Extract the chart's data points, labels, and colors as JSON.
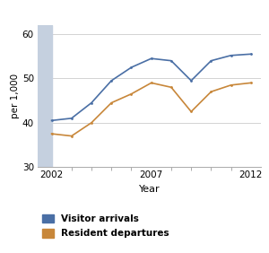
{
  "arrivals_x": [
    2002,
    2003,
    2004,
    2005,
    2006,
    2007,
    2008,
    2009,
    2010,
    2011,
    2012
  ],
  "arrivals_y": [
    40.5,
    41.0,
    44.5,
    49.5,
    52.5,
    54.5,
    54.0,
    49.5,
    54.0,
    55.2,
    55.5
  ],
  "departures_x": [
    2002,
    2003,
    2004,
    2005,
    2006,
    2007,
    2008,
    2009,
    2010,
    2011,
    2012
  ],
  "departures_y": [
    37.5,
    37.0,
    40.0,
    44.5,
    46.5,
    49.0,
    48.0,
    42.5,
    47.0,
    48.5,
    49.0
  ],
  "arrivals_color": "#4a6fa5",
  "departures_color": "#c8873a",
  "shaded_x0": 2001.3,
  "shaded_x1": 2002.0,
  "shaded_color": "#c5d0df",
  "ylabel": "per 1,000",
  "xlabel": "Year",
  "ylim": [
    30,
    62
  ],
  "xlim": [
    2001.3,
    2012.5
  ],
  "yticks": [
    30,
    40,
    50,
    60
  ],
  "xticks": [
    2002,
    2007,
    2012
  ],
  "minor_xticks": [
    2002,
    2003,
    2004,
    2005,
    2006,
    2007,
    2008,
    2009,
    2010,
    2011,
    2012
  ],
  "legend_arrivals": "Visitor arrivals",
  "legend_departures": "Resident departures",
  "grid_color": "#cccccc",
  "background_color": "#ffffff"
}
